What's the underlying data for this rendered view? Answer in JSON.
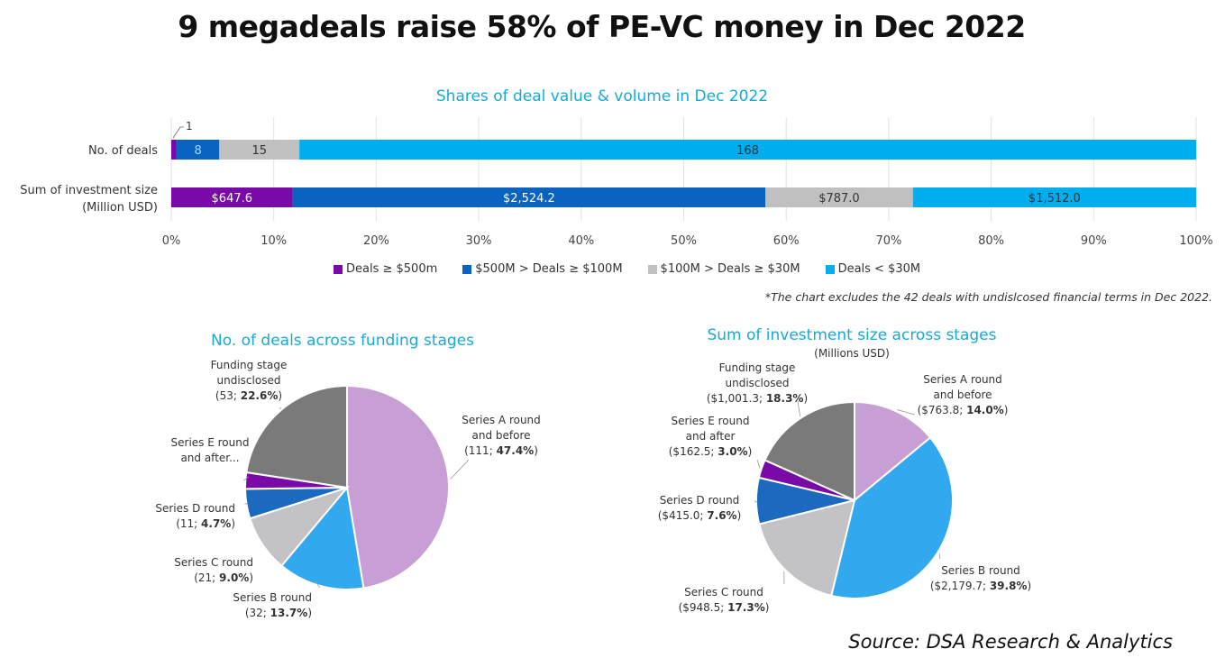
{
  "header": {
    "title": "9 megadeals raise 58% of PE-VC money in Dec 2022"
  },
  "note": "*The chart excludes the 42 deals with undislcosed financial terms in Dec 2022.",
  "source": "Source: DSA Research & Analytics",
  "colors": {
    "mega": "#7a0aa8",
    "large": "#0b63c1",
    "mid": "#c0c0c0",
    "small": "#00adef",
    "seriesA": "#c79fd4",
    "seriesB": "#32a9ee",
    "seriesC": "#c3c2c4",
    "seriesD": "#1b6ac0",
    "seriesE": "#7a0aa8",
    "undisclosed": "#7a7a7a",
    "grid": "#e2e2e2",
    "subtitle": "#17a9d8"
  },
  "chart_data": [
    {
      "type": "bar",
      "orientation": "horizontal-stacked-100",
      "title": "Shares of deal value & volume in Dec 2022",
      "categories": [
        "No. of deals",
        "Sum of investment size (Million USD)"
      ],
      "category_labels": [
        [
          "No. of deals"
        ],
        [
          "Sum of investment size",
          "(Million USD)"
        ]
      ],
      "series": [
        {
          "name": "Deals ≥ $500m",
          "key": "mega",
          "values": [
            1,
            647.6
          ],
          "labels": [
            "1",
            "$647.6"
          ]
        },
        {
          "name": "$500M > Deals ≥ $100M",
          "key": "large",
          "values": [
            8,
            2524.2
          ],
          "labels": [
            "8",
            "$2,524.2"
          ]
        },
        {
          "name": "$100M > Deals ≥ $30M",
          "key": "mid",
          "values": [
            15,
            787.0
          ],
          "labels": [
            "15",
            "$787.0"
          ]
        },
        {
          "name": "Deals < $30M",
          "key": "small",
          "values": [
            168,
            1512.0
          ],
          "labels": [
            "168",
            "$1,512.0"
          ]
        }
      ],
      "xlim": [
        0,
        100
      ],
      "xticks": [
        "0%",
        "10%",
        "20%",
        "30%",
        "40%",
        "50%",
        "60%",
        "70%",
        "80%",
        "90%",
        "100%"
      ],
      "grid": true,
      "legend": "bottom"
    },
    {
      "type": "pie",
      "title": "No. of deals across funding stages",
      "slices": [
        {
          "name": "Series A round and before",
          "key": "seriesA",
          "value": 111,
          "pct": 47.4,
          "label_lines": [
            "Series A round",
            "and before"
          ],
          "value_label": "111",
          "pct_label": "47.4%"
        },
        {
          "name": "Series B round",
          "key": "seriesB",
          "value": 32,
          "pct": 13.7,
          "label_lines": [
            "Series B round"
          ],
          "value_label": "32",
          "pct_label": "13.7%"
        },
        {
          "name": "Series C round",
          "key": "seriesC",
          "value": 21,
          "pct": 9.0,
          "label_lines": [
            "Series C round"
          ],
          "value_label": "21",
          "pct_label": "9.0%"
        },
        {
          "name": "Series D round",
          "key": "seriesD",
          "value": 11,
          "pct": 4.7,
          "label_lines": [
            "Series D round"
          ],
          "value_label": "11",
          "pct_label": "4.7%"
        },
        {
          "name": "Series E round and after",
          "key": "seriesE",
          "value": 6,
          "pct": 2.6,
          "label_lines": [
            "Series E round",
            "and after..."
          ],
          "value_label": "",
          "pct_label": ""
        },
        {
          "name": "Funding stage undisclosed",
          "key": "undisclosed",
          "value": 53,
          "pct": 22.6,
          "label_lines": [
            "Funding stage",
            "undisclosed"
          ],
          "value_label": "53",
          "pct_label": "22.6%"
        }
      ],
      "start_angle_deg": 0,
      "direction": "clockwise"
    },
    {
      "type": "pie",
      "title": "Sum of investment size across stages",
      "subtitle": "(Millions USD)",
      "slices": [
        {
          "name": "Series A round and before",
          "key": "seriesA",
          "value": 763.8,
          "pct": 14.0,
          "label_lines": [
            "Series A round",
            "and before"
          ],
          "value_label": "$763.8",
          "pct_label": "14.0%"
        },
        {
          "name": "Series B round",
          "key": "seriesB",
          "value": 2179.7,
          "pct": 39.8,
          "label_lines": [
            "Series B round"
          ],
          "value_label": "$2,179.7",
          "pct_label": "39.8%"
        },
        {
          "name": "Series C round",
          "key": "seriesC",
          "value": 948.5,
          "pct": 17.3,
          "label_lines": [
            "Series C round"
          ],
          "value_label": "$948.5",
          "pct_label": "17.3%"
        },
        {
          "name": "Series D round",
          "key": "seriesD",
          "value": 415.0,
          "pct": 7.6,
          "label_lines": [
            "Series D round"
          ],
          "value_label": "$415.0",
          "pct_label": "7.6%"
        },
        {
          "name": "Series E round and after",
          "key": "seriesE",
          "value": 162.5,
          "pct": 3.0,
          "label_lines": [
            "Series E round",
            "and after"
          ],
          "value_label": "$162.5",
          "pct_label": "3.0%"
        },
        {
          "name": "Funding stage undisclosed",
          "key": "undisclosed",
          "value": 1001.3,
          "pct": 18.3,
          "label_lines": [
            "Funding stage",
            "undisclosed"
          ],
          "value_label": "$1,001.3",
          "pct_label": "18.3%"
        }
      ],
      "start_angle_deg": 0,
      "direction": "clockwise"
    }
  ]
}
